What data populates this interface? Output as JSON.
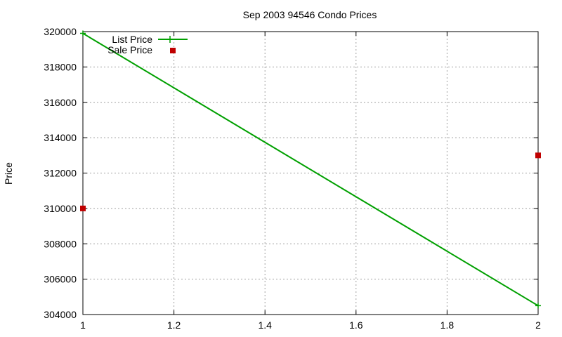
{
  "chart_data": {
    "type": "line",
    "title": "Sep 2003 94546 Condo Prices",
    "xlabel": "",
    "ylabel": "Price",
    "xlim": [
      1,
      2
    ],
    "ylim": [
      304000,
      320000
    ],
    "x_ticks": [
      1,
      1.2,
      1.4,
      1.6,
      1.8,
      2
    ],
    "y_ticks": [
      304000,
      306000,
      308000,
      310000,
      312000,
      314000,
      316000,
      318000,
      320000
    ],
    "x_tick_labels": [
      "1",
      "1.2",
      "1.4",
      "1.6",
      "1.8",
      "2"
    ],
    "y_tick_labels": [
      "304000",
      "306000",
      "308000",
      "310000",
      "312000",
      "314000",
      "316000",
      "318000",
      "320000"
    ],
    "grid": true,
    "legend_position": "top-left",
    "series": [
      {
        "name": "List Price",
        "type": "line",
        "color": "#00a000",
        "marker": "plus",
        "points": [
          [
            1,
            319900
          ],
          [
            2,
            304500
          ]
        ]
      },
      {
        "name": "Sale Price",
        "type": "scatter",
        "color": "#c00000",
        "marker": "square",
        "points": [
          [
            1,
            310000
          ],
          [
            2,
            313000
          ]
        ]
      }
    ]
  }
}
